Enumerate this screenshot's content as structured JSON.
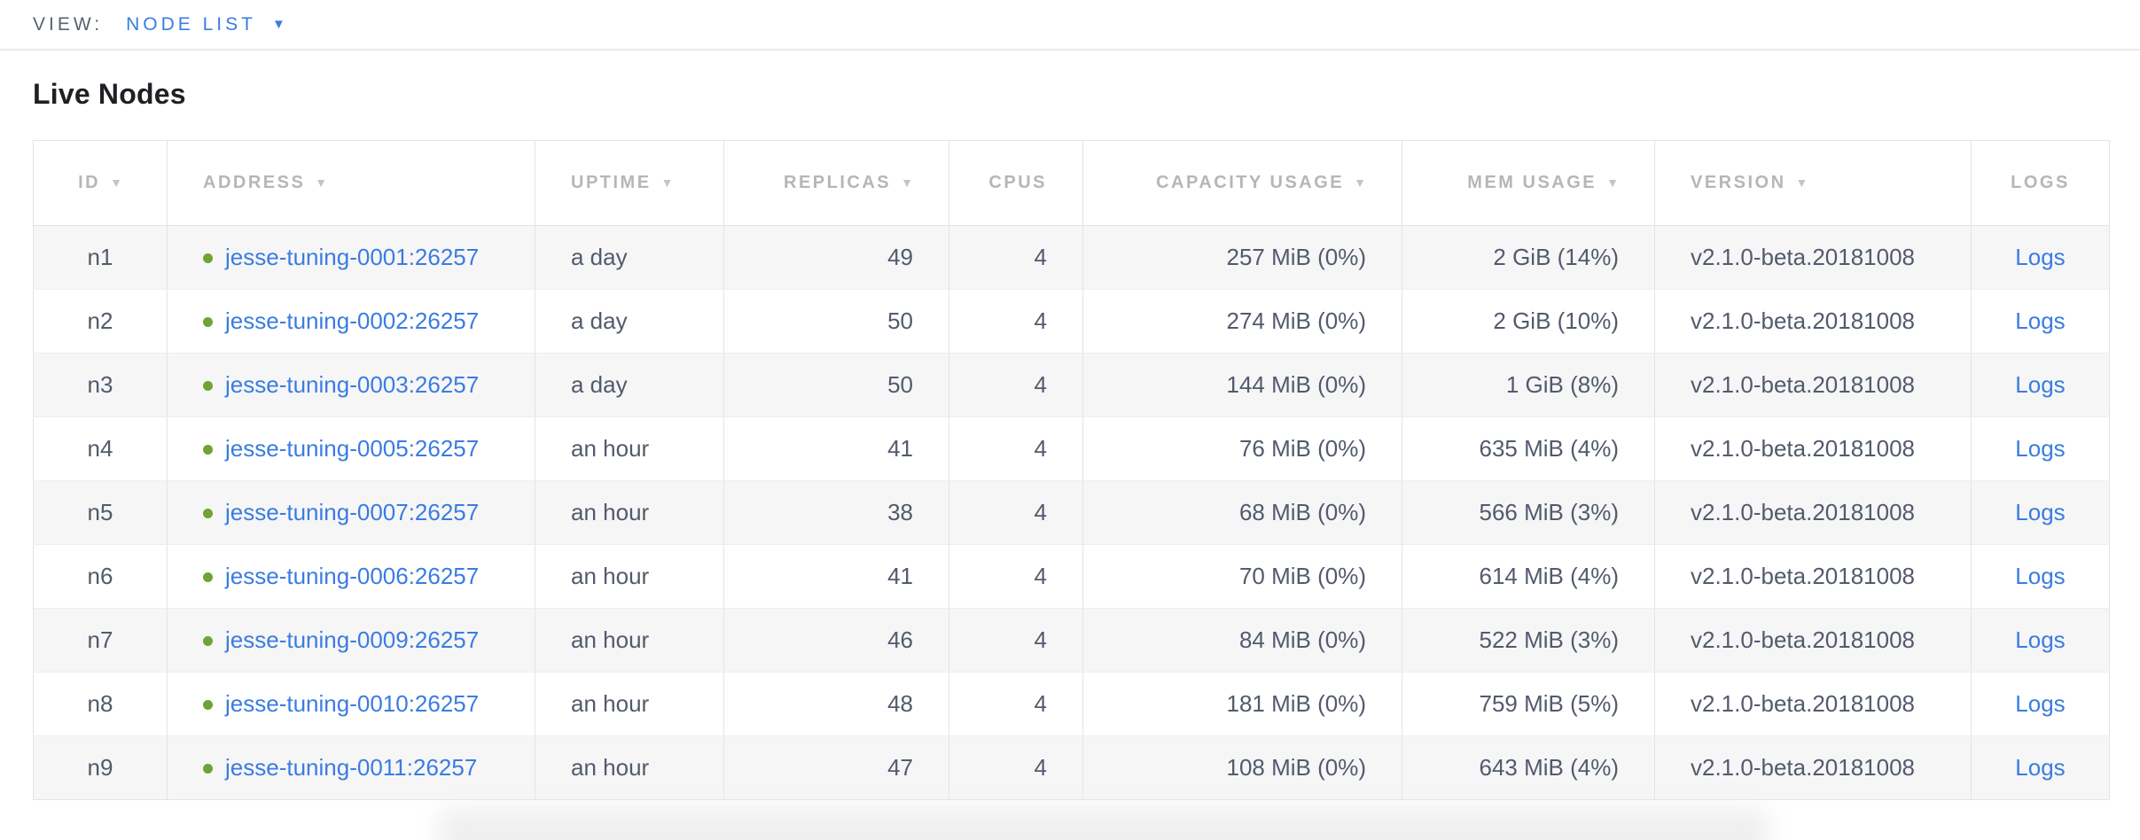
{
  "view_bar": {
    "label": "VIEW:",
    "selected": "NODE LIST",
    "dropdown_icon": "▼"
  },
  "page": {
    "title": "Live Nodes"
  },
  "table": {
    "sort_indicator": "▼",
    "columns": [
      {
        "key": "id",
        "label": "ID",
        "sortable": true,
        "align": "center"
      },
      {
        "key": "address",
        "label": "ADDRESS",
        "sortable": true,
        "align": "left"
      },
      {
        "key": "uptime",
        "label": "UPTIME",
        "sortable": true,
        "align": "left"
      },
      {
        "key": "replicas",
        "label": "REPLICAS",
        "sortable": true,
        "align": "right"
      },
      {
        "key": "cpus",
        "label": "CPUS",
        "sortable": false,
        "align": "right"
      },
      {
        "key": "capacity",
        "label": "CAPACITY USAGE",
        "sortable": true,
        "align": "right"
      },
      {
        "key": "mem",
        "label": "MEM USAGE",
        "sortable": true,
        "align": "right"
      },
      {
        "key": "version",
        "label": "VERSION",
        "sortable": true,
        "align": "left"
      },
      {
        "key": "logs",
        "label": "LOGS",
        "sortable": false,
        "align": "center"
      }
    ],
    "rows": [
      {
        "id": "n1",
        "status": "live",
        "address": "jesse-tuning-0001:26257",
        "uptime": "a day",
        "replicas": "49",
        "cpus": "4",
        "capacity": "257 MiB (0%)",
        "mem": "2 GiB (14%)",
        "version": "v2.1.0-beta.20181008",
        "logs": "Logs"
      },
      {
        "id": "n2",
        "status": "live",
        "address": "jesse-tuning-0002:26257",
        "uptime": "a day",
        "replicas": "50",
        "cpus": "4",
        "capacity": "274 MiB (0%)",
        "mem": "2 GiB (10%)",
        "version": "v2.1.0-beta.20181008",
        "logs": "Logs"
      },
      {
        "id": "n3",
        "status": "live",
        "address": "jesse-tuning-0003:26257",
        "uptime": "a day",
        "replicas": "50",
        "cpus": "4",
        "capacity": "144 MiB (0%)",
        "mem": "1 GiB (8%)",
        "version": "v2.1.0-beta.20181008",
        "logs": "Logs"
      },
      {
        "id": "n4",
        "status": "live",
        "address": "jesse-tuning-0005:26257",
        "uptime": "an hour",
        "replicas": "41",
        "cpus": "4",
        "capacity": "76 MiB (0%)",
        "mem": "635 MiB (4%)",
        "version": "v2.1.0-beta.20181008",
        "logs": "Logs"
      },
      {
        "id": "n5",
        "status": "live",
        "address": "jesse-tuning-0007:26257",
        "uptime": "an hour",
        "replicas": "38",
        "cpus": "4",
        "capacity": "68 MiB (0%)",
        "mem": "566 MiB (3%)",
        "version": "v2.1.0-beta.20181008",
        "logs": "Logs"
      },
      {
        "id": "n6",
        "status": "live",
        "address": "jesse-tuning-0006:26257",
        "uptime": "an hour",
        "replicas": "41",
        "cpus": "4",
        "capacity": "70 MiB (0%)",
        "mem": "614 MiB (4%)",
        "version": "v2.1.0-beta.20181008",
        "logs": "Logs"
      },
      {
        "id": "n7",
        "status": "live",
        "address": "jesse-tuning-0009:26257",
        "uptime": "an hour",
        "replicas": "46",
        "cpus": "4",
        "capacity": "84 MiB (0%)",
        "mem": "522 MiB (3%)",
        "version": "v2.1.0-beta.20181008",
        "logs": "Logs"
      },
      {
        "id": "n8",
        "status": "live",
        "address": "jesse-tuning-0010:26257",
        "uptime": "an hour",
        "replicas": "48",
        "cpus": "4",
        "capacity": "181 MiB (0%)",
        "mem": "759 MiB (5%)",
        "version": "v2.1.0-beta.20181008",
        "logs": "Logs"
      },
      {
        "id": "n9",
        "status": "live",
        "address": "jesse-tuning-0011:26257",
        "uptime": "an hour",
        "replicas": "47",
        "cpus": "4",
        "capacity": "108 MiB (0%)",
        "mem": "643 MiB (4%)",
        "version": "v2.1.0-beta.20181008",
        "logs": "Logs"
      }
    ]
  },
  "colors": {
    "accent_blue": "#3a7ce1",
    "live_green": "#6da432",
    "header_gray": "#b4b6ba",
    "body_text": "#525a6c",
    "row_stripe": "#f6f6f7",
    "border": "#e2e4e6"
  }
}
